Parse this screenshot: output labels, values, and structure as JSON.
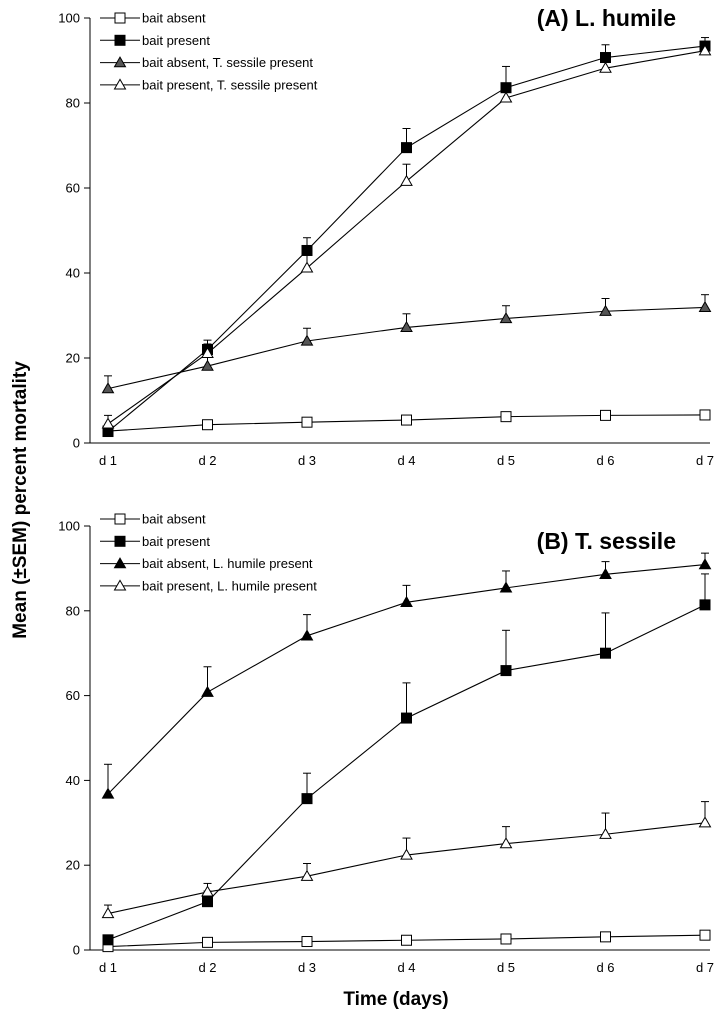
{
  "figure": {
    "ylabel": "Mean (±SEM) percent mortality",
    "xlabel": "Time (days)"
  },
  "chart_data": [
    {
      "type": "line",
      "title": "(A) L. humile",
      "categories": [
        "d 1",
        "d 2",
        "d 3",
        "d 4",
        "d 5",
        "d 6",
        "d 7"
      ],
      "ylim": [
        0,
        100
      ],
      "yticks": [
        0,
        20,
        40,
        60,
        80,
        100
      ],
      "legend_position": "top-left",
      "series": [
        {
          "name": "bait absent",
          "marker": "square",
          "fill": "#ffffff",
          "values": [
            2.8,
            4.3,
            4.9,
            5.4,
            6.2,
            6.5,
            6.6
          ],
          "errors": [
            0.5,
            0.5,
            0.5,
            0.6,
            0.6,
            0.6,
            0.6
          ]
        },
        {
          "name": "bait present",
          "marker": "square",
          "fill": "#000000",
          "values": [
            2.7,
            22.0,
            45.3,
            69.5,
            83.6,
            90.7,
            93.4
          ],
          "errors": [
            0.5,
            2.2,
            3.0,
            4.5,
            5.0,
            3.0,
            2.0
          ]
        },
        {
          "name": "bait absent, T. sessile present",
          "marker": "triangle",
          "fill": "#555555",
          "values": [
            12.8,
            18.1,
            24.0,
            27.2,
            29.3,
            31.0,
            31.9
          ],
          "errors": [
            3.0,
            2.8,
            3.0,
            3.2,
            3.0,
            3.0,
            3.0
          ]
        },
        {
          "name": "bait present, T. sessile present",
          "marker": "triangle",
          "fill": "#ffffff",
          "values": [
            4.5,
            21.1,
            41.2,
            61.6,
            81.2,
            88.2,
            92.3
          ],
          "errors": [
            2.0,
            2.2,
            4.8,
            4.0,
            3.0,
            3.0,
            2.0
          ]
        }
      ]
    },
    {
      "type": "line",
      "title": "(B) T. sessile",
      "categories": [
        "d 1",
        "d 2",
        "d 3",
        "d 4",
        "d 5",
        "d 6",
        "d 7"
      ],
      "ylim": [
        0,
        100
      ],
      "yticks": [
        0,
        20,
        40,
        60,
        80,
        100
      ],
      "legend_position": "top-left",
      "series": [
        {
          "name": "bait absent",
          "marker": "square",
          "fill": "#ffffff",
          "values": [
            0.8,
            1.8,
            2.0,
            2.3,
            2.6,
            3.1,
            3.5
          ],
          "errors": [
            0.4,
            0.4,
            0.4,
            0.4,
            0.5,
            0.5,
            0.5
          ]
        },
        {
          "name": "bait present",
          "marker": "square",
          "fill": "#000000",
          "values": [
            2.4,
            11.4,
            35.7,
            54.7,
            65.9,
            70.0,
            81.4
          ],
          "errors": [
            0.8,
            2.5,
            6.0,
            8.3,
            9.5,
            9.5,
            7.3
          ]
        },
        {
          "name": "bait absent, L. humile present",
          "marker": "triangle",
          "fill": "#000000",
          "values": [
            36.8,
            60.8,
            74.1,
            82.0,
            85.4,
            88.6,
            90.9
          ],
          "errors": [
            7.0,
            6.0,
            5.0,
            4.0,
            4.0,
            3.0,
            2.7
          ]
        },
        {
          "name": "bait present, L. humile present",
          "marker": "triangle",
          "fill": "#ffffff",
          "values": [
            8.6,
            13.7,
            17.4,
            22.4,
            25.1,
            27.3,
            30.0
          ],
          "errors": [
            2.0,
            2.0,
            3.0,
            4.0,
            4.0,
            5.0,
            5.0
          ]
        }
      ]
    }
  ]
}
